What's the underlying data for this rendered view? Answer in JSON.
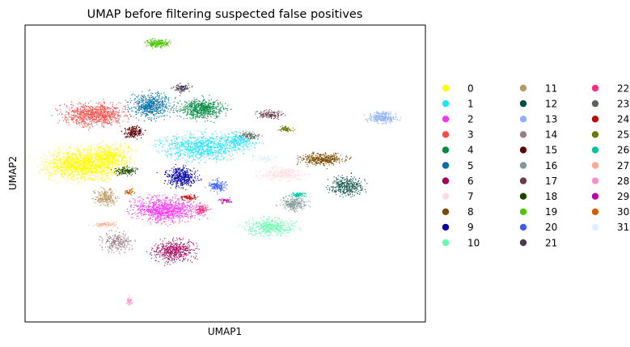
{
  "chart_data": {
    "type": "scatter",
    "title": "UMAP before filtering suspected false positives",
    "xlabel": "UMAP1",
    "ylabel": "UMAP2",
    "xticks": false,
    "yticks": false,
    "grid": false,
    "legend_position": "right",
    "legend_columns": 3,
    "xlim": [
      0,
      100
    ],
    "ylim": [
      0,
      100
    ],
    "series": [
      {
        "name": "0",
        "color": "#ffff00",
        "clusters": [
          {
            "cx": 14,
            "cy": 53,
            "rx": 9.0,
            "ry": 5.5,
            "n": 1500
          },
          {
            "cx": 21,
            "cy": 56,
            "rx": 5.5,
            "ry": 4.5,
            "n": 500
          }
        ]
      },
      {
        "name": "1",
        "color": "#1ce6ff",
        "clusters": [
          {
            "cx": 44,
            "cy": 59,
            "rx": 10.5,
            "ry": 4.5,
            "n": 900
          },
          {
            "cx": 53,
            "cy": 61,
            "rx": 4.5,
            "ry": 3.0,
            "n": 250
          }
        ]
      },
      {
        "name": "2",
        "color": "#ff34ff",
        "clusters": [
          {
            "cx": 35,
            "cy": 38,
            "rx": 8.5,
            "ry": 4.5,
            "n": 1000
          }
        ]
      },
      {
        "name": "3",
        "color": "#ff4a46",
        "clusters": [
          {
            "cx": 17,
            "cy": 70,
            "rx": 8.5,
            "ry": 4.0,
            "n": 900
          }
        ]
      },
      {
        "name": "4",
        "color": "#008941",
        "clusters": [
          {
            "cx": 44,
            "cy": 72,
            "rx": 6.0,
            "ry": 3.5,
            "n": 650
          }
        ]
      },
      {
        "name": "5",
        "color": "#006fa6",
        "clusters": [
          {
            "cx": 31,
            "cy": 73,
            "rx": 5.5,
            "ry": 4.5,
            "n": 600
          }
        ]
      },
      {
        "name": "6",
        "color": "#a30059",
        "clusters": [
          {
            "cx": 37,
            "cy": 24,
            "rx": 5.5,
            "ry": 4.0,
            "n": 500
          }
        ]
      },
      {
        "name": "7",
        "color": "#ffdbe5",
        "clusters": [
          {
            "cx": 64,
            "cy": 50,
            "rx": 5.5,
            "ry": 2.5,
            "n": 350
          }
        ]
      },
      {
        "name": "8",
        "color": "#7a4900",
        "clusters": [
          {
            "cx": 74,
            "cy": 55,
            "rx": 6.0,
            "ry": 2.0,
            "n": 400
          }
        ]
      },
      {
        "name": "9",
        "color": "#0000a6",
        "clusters": [
          {
            "cx": 39,
            "cy": 49,
            "rx": 4.0,
            "ry": 3.5,
            "n": 450
          }
        ]
      },
      {
        "name": "10",
        "color": "#63ffac",
        "clusters": [
          {
            "cx": 61,
            "cy": 32,
            "rx": 6.5,
            "ry": 3.0,
            "n": 450
          }
        ]
      },
      {
        "name": "11",
        "color": "#b79762",
        "clusters": [
          {
            "cx": 20,
            "cy": 42,
            "rx": 3.0,
            "ry": 3.0,
            "n": 250
          }
        ]
      },
      {
        "name": "12",
        "color": "#004d43",
        "clusters": [
          {
            "cx": 80,
            "cy": 46,
            "rx": 4.5,
            "ry": 3.5,
            "n": 350
          }
        ]
      },
      {
        "name": "13",
        "color": "#8fb0ff",
        "clusters": [
          {
            "cx": 89,
            "cy": 69,
            "rx": 4.0,
            "ry": 2.0,
            "n": 300
          }
        ]
      },
      {
        "name": "14",
        "color": "#997d87",
        "clusters": [
          {
            "cx": 23,
            "cy": 27,
            "rx": 4.0,
            "ry": 3.5,
            "n": 250
          }
        ]
      },
      {
        "name": "15",
        "color": "#5a0007",
        "clusters": [
          {
            "cx": 27,
            "cy": 64,
            "rx": 2.5,
            "ry": 2.0,
            "n": 200
          }
        ]
      },
      {
        "name": "16",
        "color": "#809693",
        "clusters": [
          {
            "cx": 67,
            "cy": 40,
            "rx": 3.5,
            "ry": 2.5,
            "n": 250
          }
        ]
      },
      {
        "name": "17",
        "color": "#6a3a4c",
        "clusters": [
          {
            "cx": 61,
            "cy": 70,
            "rx": 3.5,
            "ry": 1.5,
            "n": 150
          }
        ]
      },
      {
        "name": "18",
        "color": "#1b4400",
        "clusters": [
          {
            "cx": 25,
            "cy": 51,
            "rx": 3.0,
            "ry": 1.5,
            "n": 150
          }
        ]
      },
      {
        "name": "19",
        "color": "#4fc601",
        "clusters": [
          {
            "cx": 33,
            "cy": 94,
            "rx": 3.0,
            "ry": 1.5,
            "n": 250
          }
        ]
      },
      {
        "name": "20",
        "color": "#3b5dff",
        "clusters": [
          {
            "cx": 48,
            "cy": 46,
            "rx": 2.5,
            "ry": 2.0,
            "n": 150
          }
        ]
      },
      {
        "name": "21",
        "color": "#4a3b53",
        "clusters": [
          {
            "cx": 39,
            "cy": 79,
            "rx": 2.5,
            "ry": 1.5,
            "n": 120
          }
        ]
      },
      {
        "name": "22",
        "color": "#ff2f80",
        "clusters": [
          {
            "cx": 44,
            "cy": 38,
            "rx": 2.0,
            "ry": 1.5,
            "n": 120
          }
        ]
      },
      {
        "name": "23",
        "color": "#61615a",
        "clusters": [
          {
            "cx": 56,
            "cy": 63,
            "rx": 2.5,
            "ry": 1.5,
            "n": 100
          }
        ]
      },
      {
        "name": "24",
        "color": "#ba0900",
        "clusters": [
          {
            "cx": 41,
            "cy": 42,
            "rx": 2.0,
            "ry": 1.0,
            "n": 80
          }
        ]
      },
      {
        "name": "25",
        "color": "#6b7900",
        "clusters": [
          {
            "cx": 65,
            "cy": 65,
            "rx": 2.0,
            "ry": 1.0,
            "n": 80
          }
        ]
      },
      {
        "name": "26",
        "color": "#00c2a0",
        "clusters": [
          {
            "cx": 68,
            "cy": 43,
            "rx": 2.0,
            "ry": 1.0,
            "n": 80
          }
        ]
      },
      {
        "name": "27",
        "color": "#ffaa92",
        "clusters": [
          {
            "cx": 20,
            "cy": 33,
            "rx": 3.0,
            "ry": 0.8,
            "n": 80
          }
        ]
      },
      {
        "name": "28",
        "color": "#ff90c9",
        "clusters": [
          {
            "cx": 26,
            "cy": 7,
            "rx": 0.8,
            "ry": 1.5,
            "n": 50
          }
        ]
      },
      {
        "name": "29",
        "color": "#b903aa",
        "clusters": [
          {
            "cx": 50,
            "cy": 41,
            "rx": 1.5,
            "ry": 1.0,
            "n": 50
          }
        ]
      },
      {
        "name": "30",
        "color": "#d16100",
        "clusters": [
          {
            "cx": 26,
            "cy": 44,
            "rx": 1.5,
            "ry": 1.0,
            "n": 50
          }
        ]
      },
      {
        "name": "31",
        "color": "#ddefff",
        "clusters": [
          {
            "cx": 60,
            "cy": 55,
            "rx": 2.5,
            "ry": 1.5,
            "n": 80
          }
        ]
      }
    ]
  }
}
